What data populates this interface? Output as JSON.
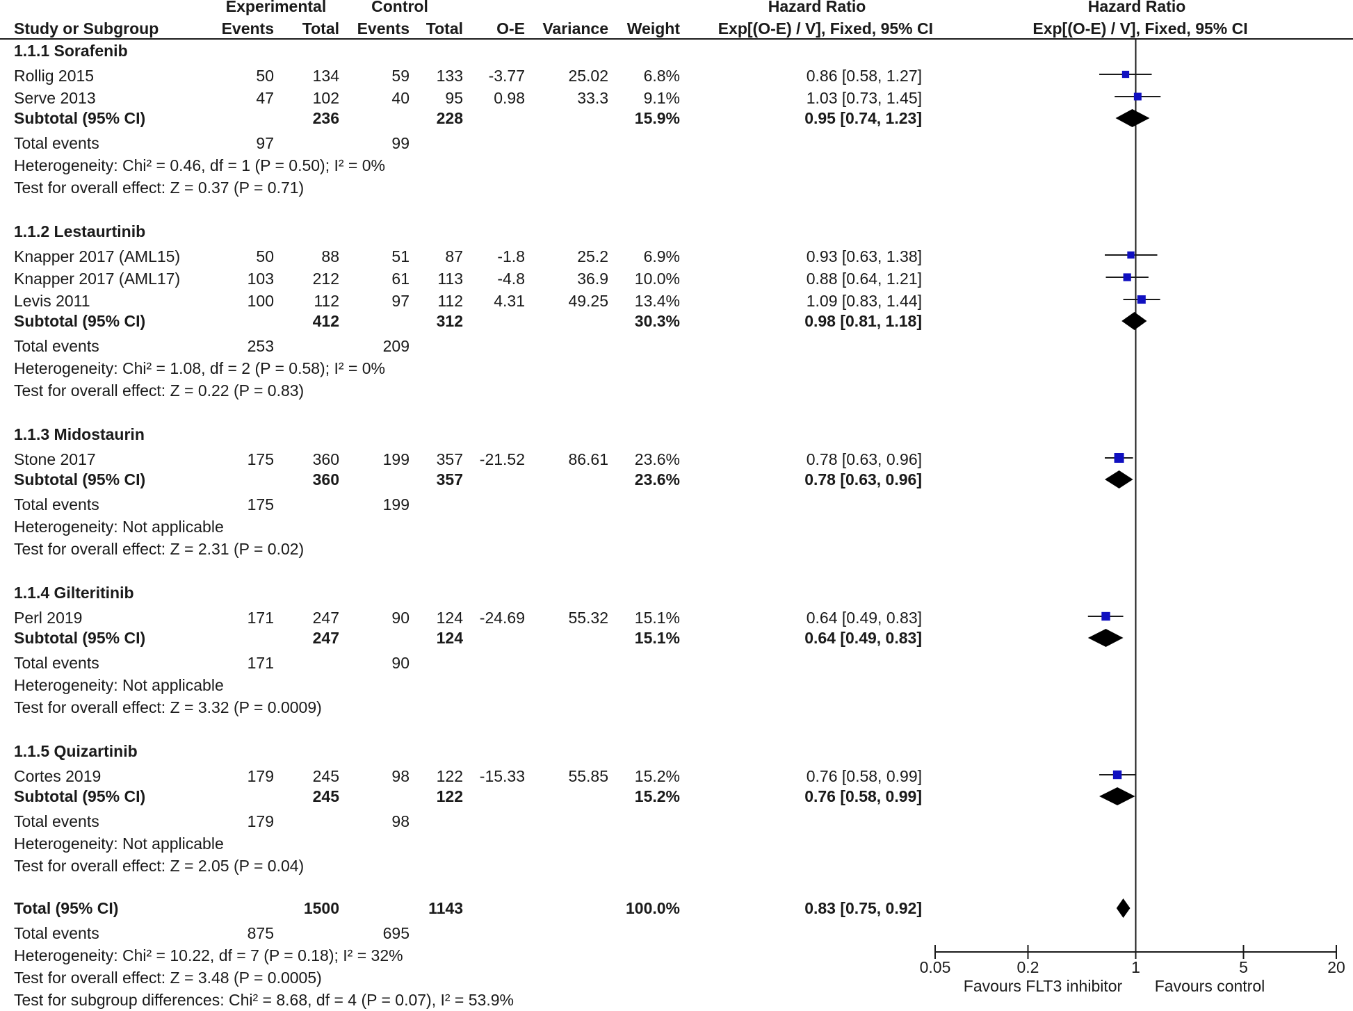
{
  "header": {
    "experimental": "Experimental",
    "control": "Control",
    "hazard_ratio_1": "Hazard Ratio",
    "hazard_ratio_2": "Hazard Ratio",
    "study_col": "Study or Subgroup",
    "exp_events": "Events",
    "exp_total": "Total",
    "ctl_events": "Events",
    "ctl_total": "Total",
    "oe": "O-E",
    "variance": "Variance",
    "weight": "Weight",
    "method_1": "Exp[(O-E) / V], Fixed, 95% CI",
    "method_2": "Exp[(O-E) / V], Fixed, 95% CI"
  },
  "rows": [
    {
      "kind": "group",
      "label": "1.1.1 Sorafenib"
    },
    {
      "kind": "study",
      "label": "Rollig 2015",
      "ee": "50",
      "et": "134",
      "ce": "59",
      "ct": "133",
      "oe": "-3.77",
      "var": "25.02",
      "w": "6.8%",
      "ci": "0.86 [0.58, 1.27]"
    },
    {
      "kind": "study",
      "label": "Serve 2013",
      "ee": "47",
      "et": "102",
      "ce": "40",
      "ct": "95",
      "oe": "0.98",
      "var": "33.3",
      "w": "9.1%",
      "ci": "1.03 [0.73, 1.45]"
    },
    {
      "kind": "subtotal",
      "label": "Subtotal (95% CI)",
      "et": "236",
      "ct": "228",
      "w": "15.9%",
      "ci": "0.95 [0.74, 1.23]"
    },
    {
      "kind": "events",
      "label": "Total events",
      "ee": "97",
      "ce": "99"
    },
    {
      "kind": "note",
      "label": "Heterogeneity: Chi² = 0.46, df = 1 (P = 0.50); I² = 0%"
    },
    {
      "kind": "note",
      "label": "Test for overall effect: Z = 0.37 (P = 0.71)"
    },
    {
      "kind": "group",
      "label": "1.1.2 Lestaurtinib"
    },
    {
      "kind": "study",
      "label": "Knapper 2017 (AML15)",
      "ee": "50",
      "et": "88",
      "ce": "51",
      "ct": "87",
      "oe": "-1.8",
      "var": "25.2",
      "w": "6.9%",
      "ci": "0.93 [0.63, 1.38]"
    },
    {
      "kind": "study",
      "label": "Knapper 2017 (AML17)",
      "ee": "103",
      "et": "212",
      "ce": "61",
      "ct": "113",
      "oe": "-4.8",
      "var": "36.9",
      "w": "10.0%",
      "ci": "0.88 [0.64, 1.21]"
    },
    {
      "kind": "study",
      "label": "Levis 2011",
      "ee": "100",
      "et": "112",
      "ce": "97",
      "ct": "112",
      "oe": "4.31",
      "var": "49.25",
      "w": "13.4%",
      "ci": "1.09 [0.83, 1.44]"
    },
    {
      "kind": "subtotal",
      "label": "Subtotal (95% CI)",
      "et": "412",
      "ct": "312",
      "w": "30.3%",
      "ci": "0.98 [0.81, 1.18]"
    },
    {
      "kind": "events",
      "label": "Total events",
      "ee": "253",
      "ce": "209"
    },
    {
      "kind": "note",
      "label": "Heterogeneity: Chi² = 1.08, df = 2 (P = 0.58); I² = 0%"
    },
    {
      "kind": "note",
      "label": "Test for overall effect: Z = 0.22 (P = 0.83)"
    },
    {
      "kind": "group",
      "label": "1.1.3 Midostaurin"
    },
    {
      "kind": "study",
      "label": "Stone 2017",
      "ee": "175",
      "et": "360",
      "ce": "199",
      "ct": "357",
      "oe": "-21.52",
      "var": "86.61",
      "w": "23.6%",
      "ci": "0.78 [0.63, 0.96]"
    },
    {
      "kind": "subtotal",
      "label": "Subtotal (95% CI)",
      "et": "360",
      "ct": "357",
      "w": "23.6%",
      "ci": "0.78 [0.63, 0.96]"
    },
    {
      "kind": "events",
      "label": "Total events",
      "ee": "175",
      "ce": "199"
    },
    {
      "kind": "note",
      "label": "Heterogeneity: Not applicable"
    },
    {
      "kind": "note",
      "label": "Test for overall effect: Z = 2.31 (P = 0.02)"
    },
    {
      "kind": "group",
      "label": "1.1.4 Gilteritinib"
    },
    {
      "kind": "study",
      "label": "Perl 2019",
      "ee": "171",
      "et": "247",
      "ce": "90",
      "ct": "124",
      "oe": "-24.69",
      "var": "55.32",
      "w": "15.1%",
      "ci": "0.64 [0.49, 0.83]"
    },
    {
      "kind": "subtotal",
      "label": "Subtotal (95% CI)",
      "et": "247",
      "ct": "124",
      "w": "15.1%",
      "ci": "0.64 [0.49, 0.83]"
    },
    {
      "kind": "events",
      "label": "Total events",
      "ee": "171",
      "ce": "90"
    },
    {
      "kind": "note",
      "label": "Heterogeneity: Not applicable"
    },
    {
      "kind": "note",
      "label": "Test for overall effect: Z = 3.32 (P = 0.0009)"
    },
    {
      "kind": "group",
      "label": "1.1.5 Quizartinib"
    },
    {
      "kind": "study",
      "label": "Cortes 2019",
      "ee": "179",
      "et": "245",
      "ce": "98",
      "ct": "122",
      "oe": "-15.33",
      "var": "55.85",
      "w": "15.2%",
      "ci": "0.76 [0.58, 0.99]"
    },
    {
      "kind": "subtotal",
      "label": "Subtotal (95% CI)",
      "et": "245",
      "ct": "122",
      "w": "15.2%",
      "ci": "0.76 [0.58, 0.99]"
    },
    {
      "kind": "events",
      "label": "Total events",
      "ee": "179",
      "ce": "98"
    },
    {
      "kind": "note",
      "label": "Heterogeneity: Not applicable"
    },
    {
      "kind": "note",
      "label": "Test for overall effect: Z = 2.05 (P = 0.04)"
    },
    {
      "kind": "total",
      "label": "Total (95% CI)",
      "et": "1500",
      "ct": "1143",
      "w": "100.0%",
      "ci": "0.83 [0.75, 0.92]"
    },
    {
      "kind": "events",
      "label": "Total events",
      "ee": "875",
      "ce": "695"
    },
    {
      "kind": "note",
      "label": "Heterogeneity: Chi² = 10.22, df = 7 (P = 0.18); I² = 32%"
    },
    {
      "kind": "note",
      "label": "Test for overall effect: Z = 3.48 (P = 0.0005)"
    },
    {
      "kind": "note",
      "label": "Test for subgroup differences: Chi² = 8.68, df = 4 (P = 0.07), I² = 53.9%"
    }
  ],
  "chart_data": {
    "type": "forest",
    "title": "Hazard Ratio",
    "subtitle": "Exp[(O-E) / V], Fixed, 95% CI",
    "x_scale": "log",
    "xlim": [
      0.05,
      20
    ],
    "x_ticks": [
      0.05,
      0.2,
      1,
      5,
      20
    ],
    "x_tick_labels": [
      "0.05",
      "0.2",
      "1",
      "5",
      "20"
    ],
    "null_line": 1,
    "favours_left": "Favours FLT3 inhibitor",
    "favours_right": "Favours control",
    "marker_color": "#1010c0",
    "diamond_color": "#000000",
    "studies": [
      {
        "name": "Rollig 2015",
        "hr": 0.86,
        "lo": 0.58,
        "hi": 1.27,
        "weight": 6.8
      },
      {
        "name": "Serve 2013",
        "hr": 1.03,
        "lo": 0.73,
        "hi": 1.45,
        "weight": 9.1
      },
      {
        "name": "Knapper 2017 (AML15)",
        "hr": 0.93,
        "lo": 0.63,
        "hi": 1.38,
        "weight": 6.9
      },
      {
        "name": "Knapper 2017 (AML17)",
        "hr": 0.88,
        "lo": 0.64,
        "hi": 1.21,
        "weight": 10.0
      },
      {
        "name": "Levis 2011",
        "hr": 1.09,
        "lo": 0.83,
        "hi": 1.44,
        "weight": 13.4
      },
      {
        "name": "Stone 2017",
        "hr": 0.78,
        "lo": 0.63,
        "hi": 0.96,
        "weight": 23.6
      },
      {
        "name": "Perl 2019",
        "hr": 0.64,
        "lo": 0.49,
        "hi": 0.83,
        "weight": 15.1
      },
      {
        "name": "Cortes 2019",
        "hr": 0.76,
        "lo": 0.58,
        "hi": 0.99,
        "weight": 15.2
      }
    ],
    "subtotals": [
      {
        "name": "Sorafenib",
        "hr": 0.95,
        "lo": 0.74,
        "hi": 1.23
      },
      {
        "name": "Lestaurtinib",
        "hr": 0.98,
        "lo": 0.81,
        "hi": 1.18
      },
      {
        "name": "Midostaurin",
        "hr": 0.78,
        "lo": 0.63,
        "hi": 0.96
      },
      {
        "name": "Gilteritinib",
        "hr": 0.64,
        "lo": 0.49,
        "hi": 0.83
      },
      {
        "name": "Quizartinib",
        "hr": 0.76,
        "lo": 0.58,
        "hi": 0.99
      }
    ],
    "overall": {
      "name": "Total",
      "hr": 0.83,
      "lo": 0.75,
      "hi": 0.92
    }
  }
}
